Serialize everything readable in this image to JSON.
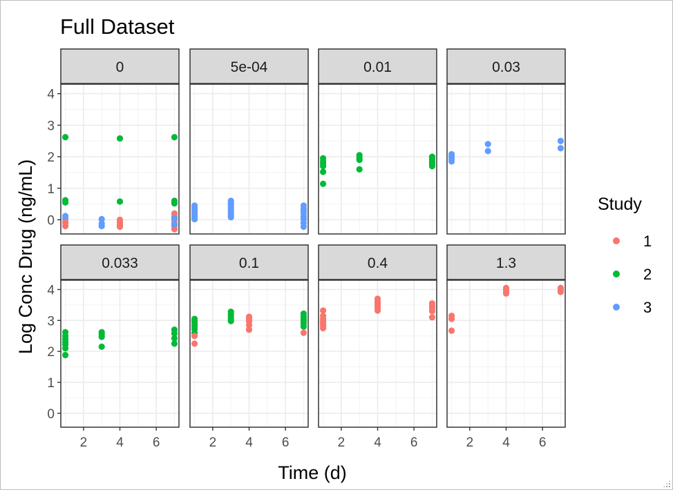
{
  "chart_data": {
    "type": "scatter",
    "title": "Full Dataset",
    "xlabel": "Time (d)",
    "ylabel": "Log Conc Drug (ng/mL)",
    "xlim": [
      0.75,
      7.25
    ],
    "ylim": [
      -0.45,
      4.3
    ],
    "xticks": [
      2,
      4,
      6
    ],
    "yticks": [
      0,
      1,
      2,
      3,
      4
    ],
    "grid": true,
    "legend_title": "Study",
    "legend_position": "right",
    "legend": [
      {
        "label": "1",
        "color": "#F8766D"
      },
      {
        "label": "2",
        "color": "#00BA38"
      },
      {
        "label": "3",
        "color": "#619CFF"
      }
    ],
    "panels": [
      {
        "label": "0",
        "points": [
          {
            "x": 1,
            "y": 2.62,
            "s": 2
          },
          {
            "x": 1,
            "y": 0.62,
            "s": 2
          },
          {
            "x": 1,
            "y": 0.55,
            "s": 2
          },
          {
            "x": 1,
            "y": 0.12,
            "s": 3
          },
          {
            "x": 1,
            "y": 0.03,
            "s": 3
          },
          {
            "x": 1,
            "y": -0.1,
            "s": 3
          },
          {
            "x": 1,
            "y": -0.2,
            "s": 1
          },
          {
            "x": 1,
            "y": -0.08,
            "s": 1
          },
          {
            "x": 3,
            "y": 0.02,
            "s": 3
          },
          {
            "x": 3,
            "y": -0.12,
            "s": 3
          },
          {
            "x": 3,
            "y": -0.2,
            "s": 3
          },
          {
            "x": 4,
            "y": 2.58,
            "s": 2
          },
          {
            "x": 4,
            "y": 0.58,
            "s": 2
          },
          {
            "x": 4,
            "y": 0.0,
            "s": 1
          },
          {
            "x": 4,
            "y": -0.08,
            "s": 1
          },
          {
            "x": 4,
            "y": -0.16,
            "s": 1
          },
          {
            "x": 4,
            "y": -0.22,
            "s": 1
          },
          {
            "x": 7,
            "y": 2.62,
            "s": 2
          },
          {
            "x": 7,
            "y": 0.6,
            "s": 2
          },
          {
            "x": 7,
            "y": 0.52,
            "s": 2
          },
          {
            "x": 7,
            "y": 0.2,
            "s": 1
          },
          {
            "x": 7,
            "y": 0.1,
            "s": 1
          },
          {
            "x": 7,
            "y": 0.0,
            "s": 1
          },
          {
            "x": 7,
            "y": -0.1,
            "s": 1
          },
          {
            "x": 7,
            "y": -0.2,
            "s": 1
          },
          {
            "x": 7,
            "y": -0.3,
            "s": 1
          },
          {
            "x": 7,
            "y": 0.05,
            "s": 3
          },
          {
            "x": 7,
            "y": -0.15,
            "s": 3
          }
        ]
      },
      {
        "label": "5e-04",
        "points": [
          {
            "x": 1,
            "y": 0.45,
            "s": 3
          },
          {
            "x": 1,
            "y": 0.38,
            "s": 3
          },
          {
            "x": 1,
            "y": 0.3,
            "s": 3
          },
          {
            "x": 1,
            "y": 0.22,
            "s": 3
          },
          {
            "x": 1,
            "y": 0.15,
            "s": 3
          },
          {
            "x": 1,
            "y": 0.08,
            "s": 3
          },
          {
            "x": 1,
            "y": 0.02,
            "s": 3
          },
          {
            "x": 3,
            "y": 0.6,
            "s": 3
          },
          {
            "x": 3,
            "y": 0.52,
            "s": 3
          },
          {
            "x": 3,
            "y": 0.45,
            "s": 3
          },
          {
            "x": 3,
            "y": 0.38,
            "s": 3
          },
          {
            "x": 3,
            "y": 0.3,
            "s": 3
          },
          {
            "x": 3,
            "y": 0.22,
            "s": 3
          },
          {
            "x": 3,
            "y": 0.15,
            "s": 3
          },
          {
            "x": 3,
            "y": 0.08,
            "s": 3
          },
          {
            "x": 7,
            "y": 0.45,
            "s": 3
          },
          {
            "x": 7,
            "y": 0.36,
            "s": 3
          },
          {
            "x": 7,
            "y": 0.28,
            "s": 3
          },
          {
            "x": 7,
            "y": 0.2,
            "s": 3
          },
          {
            "x": 7,
            "y": 0.1,
            "s": 3
          },
          {
            "x": 7,
            "y": 0.02,
            "s": 3
          },
          {
            "x": 7,
            "y": -0.1,
            "s": 3
          },
          {
            "x": 7,
            "y": -0.22,
            "s": 3
          }
        ]
      },
      {
        "label": "0.01",
        "points": [
          {
            "x": 1,
            "y": 1.95,
            "s": 2
          },
          {
            "x": 1,
            "y": 1.85,
            "s": 2
          },
          {
            "x": 1,
            "y": 1.78,
            "s": 2
          },
          {
            "x": 1,
            "y": 1.7,
            "s": 2
          },
          {
            "x": 1,
            "y": 1.52,
            "s": 2
          },
          {
            "x": 1,
            "y": 1.14,
            "s": 2
          },
          {
            "x": 3,
            "y": 2.05,
            "s": 2
          },
          {
            "x": 3,
            "y": 1.97,
            "s": 2
          },
          {
            "x": 3,
            "y": 1.9,
            "s": 2
          },
          {
            "x": 3,
            "y": 1.6,
            "s": 2
          },
          {
            "x": 7,
            "y": 2.0,
            "s": 2
          },
          {
            "x": 7,
            "y": 1.92,
            "s": 2
          },
          {
            "x": 7,
            "y": 1.85,
            "s": 2
          },
          {
            "x": 7,
            "y": 1.78,
            "s": 2
          },
          {
            "x": 7,
            "y": 1.7,
            "s": 2
          }
        ]
      },
      {
        "label": "0.03",
        "points": [
          {
            "x": 1,
            "y": 2.08,
            "s": 3
          },
          {
            "x": 1,
            "y": 2.0,
            "s": 3
          },
          {
            "x": 1,
            "y": 1.93,
            "s": 3
          },
          {
            "x": 1,
            "y": 1.85,
            "s": 3
          },
          {
            "x": 3,
            "y": 2.4,
            "s": 3
          },
          {
            "x": 3,
            "y": 2.18,
            "s": 3
          },
          {
            "x": 7,
            "y": 2.5,
            "s": 3
          },
          {
            "x": 7,
            "y": 2.27,
            "s": 3
          }
        ]
      },
      {
        "label": "0.033",
        "points": [
          {
            "x": 1,
            "y": 2.62,
            "s": 2
          },
          {
            "x": 1,
            "y": 2.5,
            "s": 2
          },
          {
            "x": 1,
            "y": 2.4,
            "s": 2
          },
          {
            "x": 1,
            "y": 2.3,
            "s": 2
          },
          {
            "x": 1,
            "y": 2.22,
            "s": 2
          },
          {
            "x": 1,
            "y": 2.1,
            "s": 2
          },
          {
            "x": 1,
            "y": 1.88,
            "s": 2
          },
          {
            "x": 3,
            "y": 2.62,
            "s": 2
          },
          {
            "x": 3,
            "y": 2.55,
            "s": 2
          },
          {
            "x": 3,
            "y": 2.47,
            "s": 2
          },
          {
            "x": 3,
            "y": 2.15,
            "s": 2
          },
          {
            "x": 7,
            "y": 2.7,
            "s": 2
          },
          {
            "x": 7,
            "y": 2.58,
            "s": 2
          },
          {
            "x": 7,
            "y": 2.42,
            "s": 2
          },
          {
            "x": 7,
            "y": 2.25,
            "s": 2
          }
        ]
      },
      {
        "label": "0.1",
        "points": [
          {
            "x": 1,
            "y": 3.05,
            "s": 2
          },
          {
            "x": 1,
            "y": 2.97,
            "s": 2
          },
          {
            "x": 1,
            "y": 2.88,
            "s": 2
          },
          {
            "x": 1,
            "y": 2.8,
            "s": 2
          },
          {
            "x": 1,
            "y": 2.72,
            "s": 2
          },
          {
            "x": 1,
            "y": 2.6,
            "s": 2
          },
          {
            "x": 1,
            "y": 2.5,
            "s": 1
          },
          {
            "x": 1,
            "y": 2.25,
            "s": 1
          },
          {
            "x": 3,
            "y": 3.28,
            "s": 2
          },
          {
            "x": 3,
            "y": 3.2,
            "s": 2
          },
          {
            "x": 3,
            "y": 3.12,
            "s": 2
          },
          {
            "x": 3,
            "y": 3.05,
            "s": 2
          },
          {
            "x": 3,
            "y": 2.98,
            "s": 2
          },
          {
            "x": 4,
            "y": 3.12,
            "s": 1
          },
          {
            "x": 4,
            "y": 3.05,
            "s": 1
          },
          {
            "x": 4,
            "y": 2.97,
            "s": 1
          },
          {
            "x": 4,
            "y": 2.85,
            "s": 1
          },
          {
            "x": 4,
            "y": 2.7,
            "s": 1
          },
          {
            "x": 7,
            "y": 3.22,
            "s": 2
          },
          {
            "x": 7,
            "y": 3.12,
            "s": 2
          },
          {
            "x": 7,
            "y": 3.05,
            "s": 2
          },
          {
            "x": 7,
            "y": 2.98,
            "s": 2
          },
          {
            "x": 7,
            "y": 2.9,
            "s": 2
          },
          {
            "x": 7,
            "y": 2.8,
            "s": 2
          },
          {
            "x": 7,
            "y": 2.6,
            "s": 1
          }
        ]
      },
      {
        "label": "0.4",
        "points": [
          {
            "x": 1,
            "y": 3.32,
            "s": 1
          },
          {
            "x": 1,
            "y": 3.15,
            "s": 1
          },
          {
            "x": 1,
            "y": 3.05,
            "s": 1
          },
          {
            "x": 1,
            "y": 2.97,
            "s": 1
          },
          {
            "x": 1,
            "y": 2.9,
            "s": 1
          },
          {
            "x": 1,
            "y": 2.83,
            "s": 1
          },
          {
            "x": 1,
            "y": 2.75,
            "s": 1
          },
          {
            "x": 4,
            "y": 3.7,
            "s": 1
          },
          {
            "x": 4,
            "y": 3.62,
            "s": 1
          },
          {
            "x": 4,
            "y": 3.55,
            "s": 1
          },
          {
            "x": 4,
            "y": 3.47,
            "s": 1
          },
          {
            "x": 4,
            "y": 3.4,
            "s": 1
          },
          {
            "x": 4,
            "y": 3.32,
            "s": 1
          },
          {
            "x": 7,
            "y": 3.55,
            "s": 1
          },
          {
            "x": 7,
            "y": 3.47,
            "s": 1
          },
          {
            "x": 7,
            "y": 3.4,
            "s": 1
          },
          {
            "x": 7,
            "y": 3.3,
            "s": 1
          },
          {
            "x": 7,
            "y": 3.1,
            "s": 1
          }
        ]
      },
      {
        "label": "1.3",
        "points": [
          {
            "x": 1,
            "y": 3.15,
            "s": 1
          },
          {
            "x": 1,
            "y": 3.05,
            "s": 1
          },
          {
            "x": 1,
            "y": 2.67,
            "s": 1
          },
          {
            "x": 4,
            "y": 4.05,
            "s": 1
          },
          {
            "x": 4,
            "y": 3.98,
            "s": 1
          },
          {
            "x": 4,
            "y": 3.92,
            "s": 1
          },
          {
            "x": 4,
            "y": 3.87,
            "s": 1
          },
          {
            "x": 7,
            "y": 4.05,
            "s": 1
          },
          {
            "x": 7,
            "y": 3.98,
            "s": 1
          },
          {
            "x": 7,
            "y": 3.92,
            "s": 1
          }
        ]
      }
    ]
  }
}
